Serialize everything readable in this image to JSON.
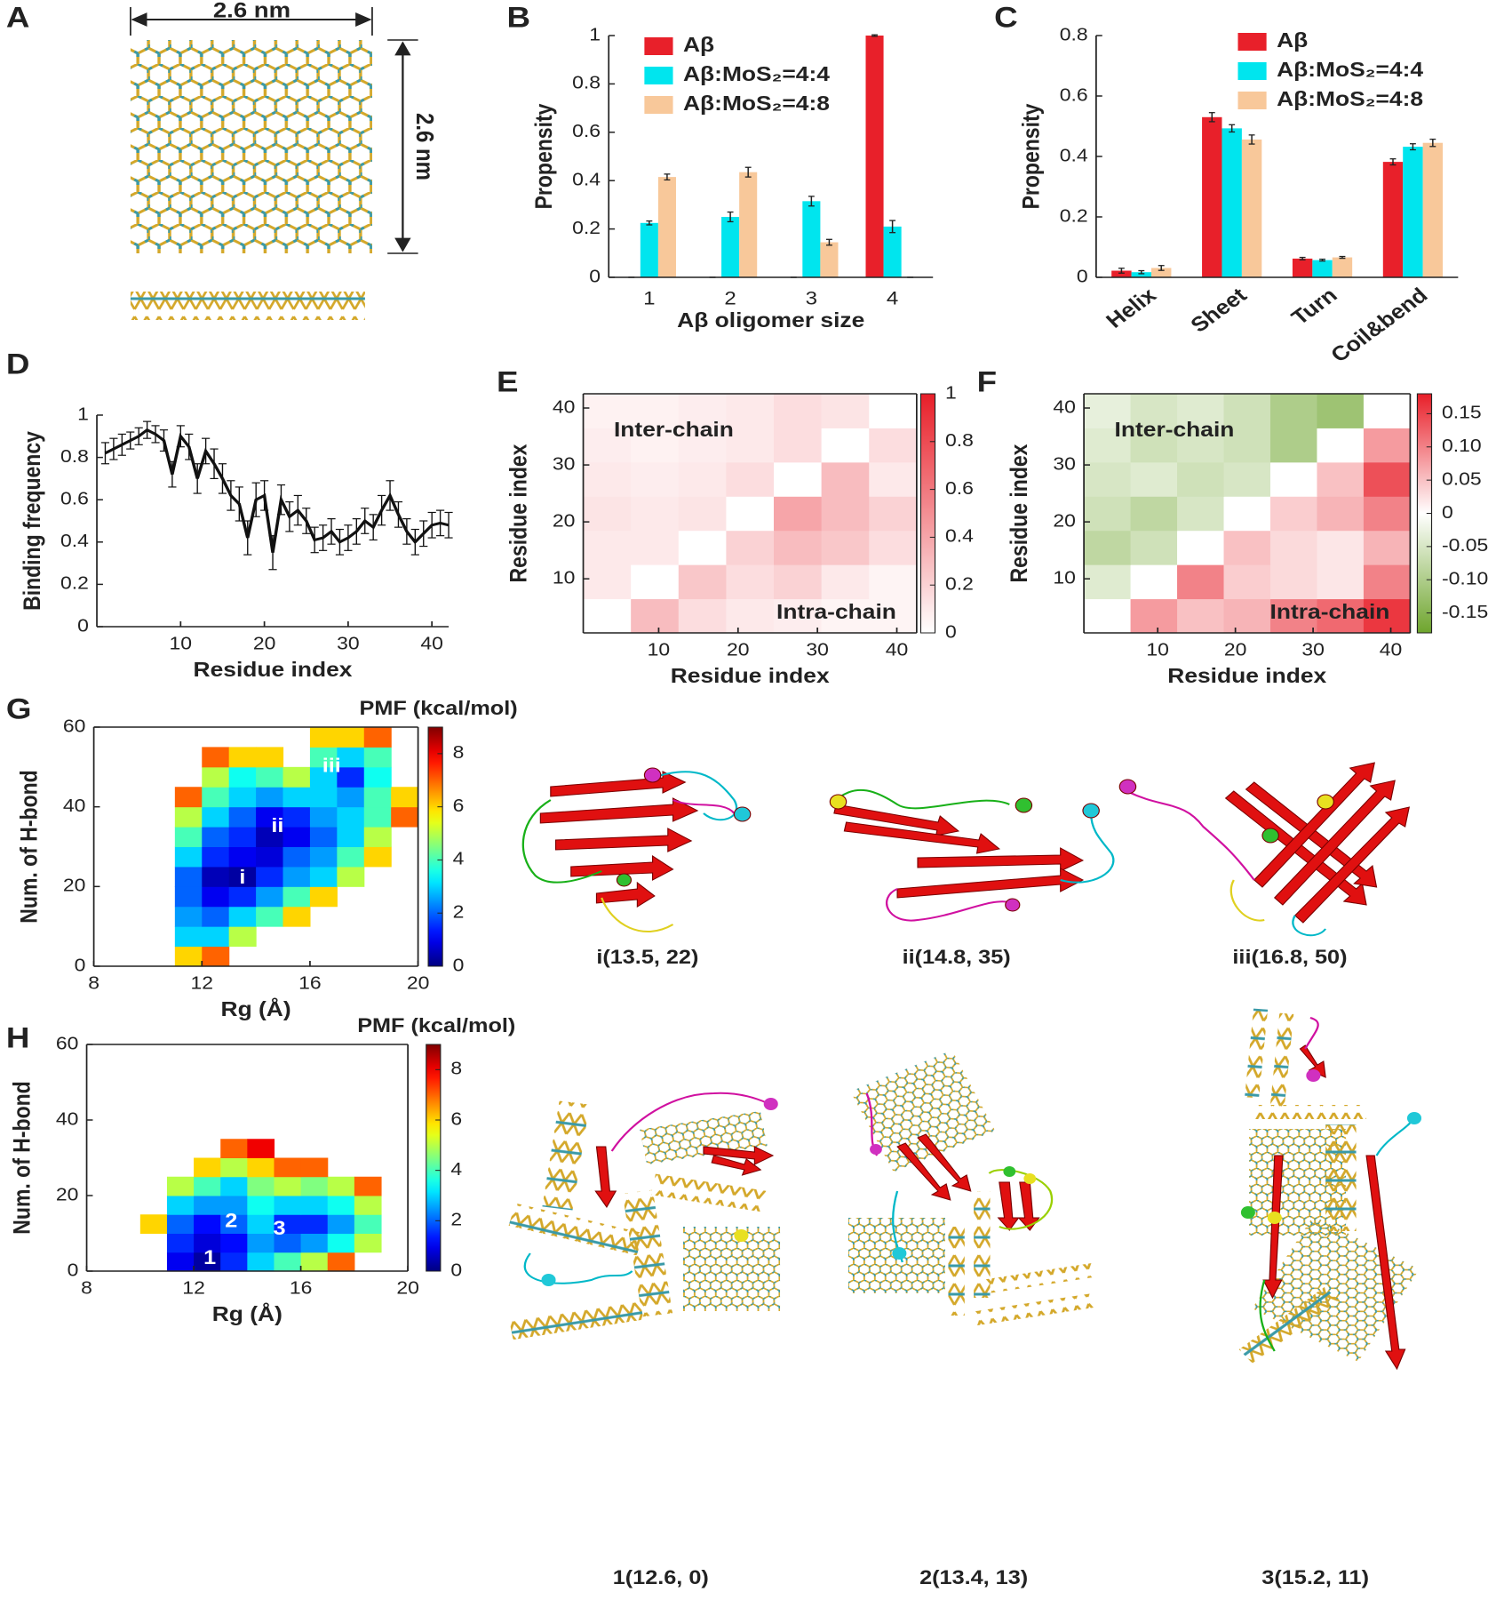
{
  "panel_labels": [
    "A",
    "B",
    "C",
    "D",
    "E",
    "F",
    "G",
    "H"
  ],
  "panel_a": {
    "width_label": "2.6 nm",
    "height_label": "2.6 nm"
  },
  "structures": {
    "g": [
      "i(13.5, 22)",
      "ii(14.8, 35)",
      "iii(16.8, 50)"
    ],
    "h": [
      "1(12.6, 0)",
      "2(13.4, 13)",
      "3(15.2, 11)"
    ]
  },
  "chart_data": [
    {
      "type": "bar",
      "xlabel": "Aβ oligomer size",
      "ylabel": "Propensity",
      "categories": [
        "1",
        "2",
        "3",
        "4"
      ],
      "ylim": [
        0,
        1
      ],
      "yticks": [
        0,
        0.2,
        0.4,
        0.6,
        0.8,
        1
      ],
      "legend": true,
      "series": [
        {
          "name": "Aβ",
          "color": "#e8202a",
          "values": [
            0,
            0,
            0,
            1
          ],
          "errors": [
            0,
            0,
            0,
            0.003
          ]
        },
        {
          "name": "Aβ:MoS₂=4:4",
          "color": "#00e5ee",
          "values": [
            0.225,
            0.25,
            0.315,
            0.21
          ],
          "errors": [
            0.008,
            0.02,
            0.02,
            0.025
          ]
        },
        {
          "name": "Aβ:MoS₂=4:8",
          "color": "#f8c89a",
          "values": [
            0.415,
            0.435,
            0.145,
            0
          ],
          "errors": [
            0.012,
            0.02,
            0.012,
            0
          ]
        }
      ]
    },
    {
      "type": "bar",
      "ylabel": "Propensity",
      "categories": [
        "Helix",
        "Sheet",
        "Turn",
        "Coil&bend"
      ],
      "ylim": [
        0,
        0.8
      ],
      "yticks": [
        0,
        0.2,
        0.4,
        0.6,
        0.8
      ],
      "legend": true,
      "rotate_categories": true,
      "series": [
        {
          "name": "Aβ",
          "color": "#e8202a",
          "values": [
            0.022,
            0.53,
            0.062,
            0.382
          ],
          "errors": [
            0.008,
            0.015,
            0.004,
            0.01
          ]
        },
        {
          "name": "Aβ:MoS₂=4:4",
          "color": "#00e5ee",
          "values": [
            0.017,
            0.493,
            0.057,
            0.432
          ],
          "errors": [
            0.005,
            0.012,
            0.003,
            0.01
          ]
        },
        {
          "name": "Aβ:MoS₂=4:8",
          "color": "#f8c89a",
          "values": [
            0.031,
            0.456,
            0.066,
            0.445
          ],
          "errors": [
            0.008,
            0.015,
            0.003,
            0.012
          ]
        }
      ]
    },
    {
      "type": "line",
      "xlabel": "Residue index",
      "ylabel": "Binding frequency",
      "color": "#111111",
      "xlim": [
        0,
        42
      ],
      "xticks": [
        10,
        20,
        30,
        40
      ],
      "ylim": [
        0,
        1
      ],
      "yticks": [
        0,
        0.2,
        0.4,
        0.6,
        0.8,
        1
      ],
      "x": [
        1,
        2,
        3,
        4,
        5,
        6,
        7,
        8,
        9,
        10,
        11,
        12,
        13,
        14,
        15,
        16,
        17,
        18,
        19,
        20,
        21,
        22,
        23,
        24,
        25,
        26,
        27,
        28,
        29,
        30,
        31,
        32,
        33,
        34,
        35,
        36,
        37,
        38,
        39,
        40,
        41,
        42
      ],
      "values": [
        0.82,
        0.84,
        0.86,
        0.88,
        0.9,
        0.93,
        0.91,
        0.88,
        0.72,
        0.9,
        0.85,
        0.7,
        0.83,
        0.77,
        0.7,
        0.62,
        0.58,
        0.42,
        0.6,
        0.62,
        0.35,
        0.6,
        0.52,
        0.55,
        0.5,
        0.41,
        0.42,
        0.45,
        0.4,
        0.42,
        0.45,
        0.5,
        0.47,
        0.55,
        0.62,
        0.53,
        0.45,
        0.4,
        0.44,
        0.48,
        0.49,
        0.48
      ],
      "errors": [
        0.05,
        0.05,
        0.05,
        0.04,
        0.04,
        0.04,
        0.04,
        0.05,
        0.06,
        0.05,
        0.06,
        0.07,
        0.06,
        0.07,
        0.07,
        0.07,
        0.08,
        0.08,
        0.08,
        0.07,
        0.08,
        0.07,
        0.07,
        0.07,
        0.06,
        0.06,
        0.06,
        0.06,
        0.06,
        0.06,
        0.06,
        0.06,
        0.06,
        0.07,
        0.07,
        0.06,
        0.06,
        0.06,
        0.06,
        0.06,
        0.06,
        0.06
      ]
    },
    {
      "type": "heatmap",
      "xlabel": "Residue index",
      "ylabel": "Residue index",
      "colormap": "reds",
      "xlim": [
        0.5,
        42.5
      ],
      "ylim": [
        0.5,
        42.5
      ],
      "xticks": [
        10,
        20,
        30,
        40
      ],
      "yticks": [
        10,
        20,
        30,
        40
      ],
      "zlim": [
        0,
        1
      ],
      "zticks": [
        0,
        0.2,
        0.4,
        0.6,
        0.8,
        1
      ],
      "annotations": [
        "Inter-chain",
        "Intra-chain"
      ],
      "z": [
        [
          0,
          0.3,
          0.15,
          0.1,
          0.08,
          0.05,
          0.05
        ],
        [
          0.1,
          0,
          0.25,
          0.15,
          0.2,
          0.1,
          0.05
        ],
        [
          0.1,
          0.1,
          0,
          0.2,
          0.3,
          0.25,
          0.15
        ],
        [
          0.12,
          0.1,
          0.12,
          0,
          0.4,
          0.3,
          0.2
        ],
        [
          0.1,
          0.08,
          0.1,
          0.15,
          0,
          0.3,
          0.1
        ],
        [
          0.08,
          0.06,
          0.08,
          0.1,
          0.15,
          0,
          0.15
        ],
        [
          0.06,
          0.06,
          0.08,
          0.1,
          0.15,
          0.12,
          0
        ]
      ]
    },
    {
      "type": "heatmap",
      "xlabel": "Residue index",
      "ylabel": "Residue index",
      "colormap": "greenred",
      "xlim": [
        0.5,
        42.5
      ],
      "ylim": [
        0.5,
        42.5
      ],
      "xticks": [
        10,
        20,
        30,
        40
      ],
      "yticks": [
        10,
        20,
        30,
        40
      ],
      "zlim": [
        -0.18,
        0.18
      ],
      "zticks": [
        -0.15,
        {
          "value": -0.1,
          "label": "-0.10"
        },
        -0.05,
        0,
        0.05,
        {
          "value": 0.1,
          "label": "0.10"
        },
        0.15
      ],
      "annotations": [
        "Inter-chain",
        "Intra-chain"
      ],
      "z": [
        [
          0,
          0.08,
          0.05,
          0.06,
          0.1,
          0.12,
          0.16
        ],
        [
          -0.04,
          0,
          0.1,
          0.04,
          0.03,
          0.02,
          0.1
        ],
        [
          -0.08,
          -0.06,
          0,
          0.05,
          0.03,
          0.02,
          0.06
        ],
        [
          -0.06,
          -0.08,
          -0.05,
          0,
          0.04,
          0.06,
          0.1
        ],
        [
          -0.05,
          -0.04,
          -0.06,
          -0.05,
          0,
          0.05,
          0.14
        ],
        [
          -0.04,
          -0.06,
          -0.05,
          -0.06,
          -0.1,
          0,
          0.08
        ],
        [
          -0.03,
          -0.05,
          -0.04,
          -0.06,
          -0.1,
          -0.12,
          0
        ]
      ]
    },
    {
      "type": "contour",
      "xlabel": "Rg (Å)",
      "ylabel": "Num. of H-bond",
      "colorbar_label": "PMF (kcal/mol)",
      "colormap": "jet",
      "xlim": [
        8,
        20
      ],
      "ylim": [
        0,
        60
      ],
      "xticks": [
        8,
        12,
        16,
        20
      ],
      "yticks": [
        0,
        20,
        40,
        60
      ],
      "zlim": [
        0,
        9
      ],
      "zticks": [
        0,
        2,
        4,
        6,
        8
      ],
      "points": [
        {
          "label": "i",
          "x": 13.5,
          "y": 22
        },
        {
          "label": "ii",
          "x": 14.8,
          "y": 35
        },
        {
          "label": "iii",
          "x": 16.8,
          "y": 50
        }
      ],
      "z": [
        [
          null,
          null,
          null,
          6,
          7,
          null,
          null,
          null,
          null,
          null,
          null,
          null
        ],
        [
          null,
          null,
          null,
          3,
          3,
          5,
          null,
          null,
          null,
          null,
          null,
          null
        ],
        [
          null,
          null,
          null,
          2.5,
          2,
          3,
          4,
          6,
          null,
          null,
          null,
          null
        ],
        [
          null,
          null,
          null,
          2,
          1,
          1.5,
          2.5,
          4,
          6,
          null,
          null,
          null
        ],
        [
          null,
          null,
          null,
          2,
          0.5,
          0.3,
          1.5,
          2.5,
          3,
          5,
          null,
          null
        ],
        [
          null,
          null,
          null,
          3,
          1.5,
          1,
          0.8,
          2,
          2.5,
          4,
          6,
          null
        ],
        [
          null,
          null,
          null,
          4,
          2,
          1.5,
          0.5,
          1,
          2,
          3,
          5,
          null
        ],
        [
          null,
          null,
          null,
          5,
          3,
          2,
          1,
          1.5,
          2.5,
          3,
          4,
          7
        ],
        [
          null,
          null,
          null,
          7,
          4,
          3,
          2.5,
          3,
          3,
          2.5,
          4,
          6
        ],
        [
          null,
          null,
          null,
          null,
          5,
          3.5,
          4,
          5,
          3,
          1.5,
          3.5,
          null
        ],
        [
          null,
          null,
          null,
          null,
          7,
          6,
          6,
          null,
          4,
          3,
          4,
          null
        ],
        [
          null,
          null,
          null,
          null,
          null,
          null,
          null,
          null,
          6,
          6,
          7,
          null
        ]
      ]
    },
    {
      "type": "contour",
      "xlabel": "Rg (Å)",
      "ylabel": "Num. of H-bond",
      "colorbar_label": "PMF (kcal/mol)",
      "colormap": "jet",
      "xlim": [
        8,
        20
      ],
      "ylim": [
        0,
        60
      ],
      "xticks": [
        8,
        12,
        16,
        20
      ],
      "yticks": [
        0,
        20,
        40,
        60
      ],
      "zlim": [
        0,
        9
      ],
      "zticks": [
        0,
        2,
        4,
        6,
        8
      ],
      "points": [
        {
          "label": "1",
          "x": 12.6,
          "y": 0
        },
        {
          "label": "2",
          "x": 13.4,
          "y": 13
        },
        {
          "label": "3",
          "x": 15.2,
          "y": 11
        }
      ],
      "z": [
        [
          null,
          null,
          null,
          1,
          0.3,
          1.5,
          3,
          4,
          5,
          7,
          null,
          null
        ],
        [
          null,
          null,
          null,
          1.5,
          0.8,
          1.2,
          2.5,
          2,
          2.5,
          3.5,
          5,
          null
        ],
        [
          null,
          null,
          6,
          2,
          1.2,
          2,
          3,
          1.5,
          1.5,
          2.5,
          4,
          null
        ],
        [
          null,
          null,
          null,
          3,
          2.5,
          2.5,
          3.5,
          3,
          3,
          3.5,
          5,
          null
        ],
        [
          null,
          null,
          null,
          5,
          4,
          3,
          4.5,
          5,
          4.5,
          5,
          7,
          null
        ],
        [
          null,
          null,
          null,
          null,
          6,
          5,
          6,
          7,
          7,
          null,
          null,
          null
        ],
        [
          null,
          null,
          null,
          null,
          null,
          7,
          8,
          null,
          null,
          null,
          null,
          null
        ],
        [
          null,
          null,
          null,
          null,
          null,
          null,
          null,
          null,
          null,
          null,
          null,
          null
        ],
        [
          null,
          null,
          null,
          null,
          null,
          null,
          null,
          null,
          null,
          null,
          null,
          null
        ],
        [
          null,
          null,
          null,
          null,
          null,
          null,
          null,
          null,
          null,
          null,
          null,
          null
        ],
        [
          null,
          null,
          null,
          null,
          null,
          null,
          null,
          null,
          null,
          null,
          null,
          null
        ],
        [
          null,
          null,
          null,
          null,
          null,
          null,
          null,
          null,
          null,
          null,
          null,
          null
        ]
      ]
    }
  ]
}
